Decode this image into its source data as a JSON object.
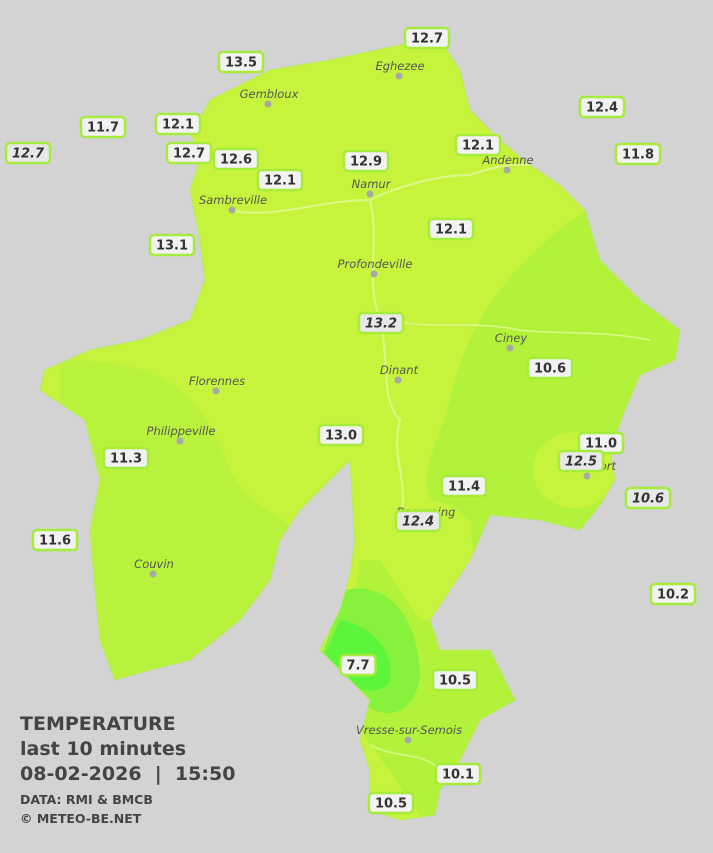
{
  "map": {
    "title": {
      "line1": "TEMPERATURE",
      "line2": "last 10 minutes",
      "line3": "08-02-2026  |  15:50",
      "source": "DATA: RMI & BMCB",
      "copyright": "© METEO-BE.NET"
    },
    "cities": [
      "Eghezee",
      "Gembloux",
      "Andenne",
      "Namur",
      "Sambreville",
      "Profondeville",
      "Ciney",
      "Florennes",
      "Dinant",
      "Philippeville",
      "Couvin",
      "Vresse-sur-Semois",
      "Beauraing",
      "Rochefort"
    ],
    "stations": [
      {
        "label": "12.7",
        "italic": false
      },
      {
        "label": "13.5",
        "italic": false
      },
      {
        "label": "11.7",
        "italic": false
      },
      {
        "label": "12.1",
        "italic": false
      },
      {
        "label": "12.4",
        "italic": false
      },
      {
        "label": "12.7",
        "italic": true
      },
      {
        "label": "12.7",
        "italic": false
      },
      {
        "label": "12.6",
        "italic": false
      },
      {
        "label": "12.1",
        "italic": false
      },
      {
        "label": "12.9",
        "italic": false
      },
      {
        "label": "12.1",
        "italic": false
      },
      {
        "label": "11.8",
        "italic": false
      },
      {
        "label": "13.1",
        "italic": false
      },
      {
        "label": "12.1",
        "italic": false
      },
      {
        "label": "13.2",
        "italic": true
      },
      {
        "label": "10.6",
        "italic": false
      },
      {
        "label": "13.0",
        "italic": false
      },
      {
        "label": "11.3",
        "italic": false
      },
      {
        "label": "11.0",
        "italic": false
      },
      {
        "label": "12.5",
        "italic": true
      },
      {
        "label": "11.4",
        "italic": false
      },
      {
        "label": "10.6",
        "italic": true
      },
      {
        "label": "12.4",
        "italic": true
      },
      {
        "label": "11.6",
        "italic": false
      },
      {
        "label": "10.2",
        "italic": false
      },
      {
        "label": "7.7",
        "italic": false
      },
      {
        "label": "10.5",
        "italic": false
      },
      {
        "label": "10.1",
        "italic": false
      },
      {
        "label": "10.5",
        "italic": false
      }
    ]
  }
}
